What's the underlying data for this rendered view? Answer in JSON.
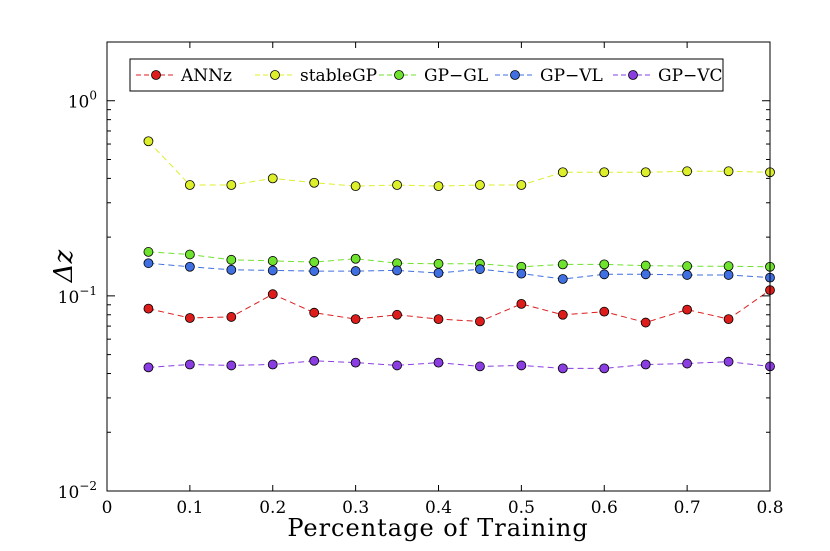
{
  "chart_data": {
    "type": "line",
    "title": "",
    "xlabel": "Percentage of Training",
    "ylabel": "Δz",
    "xlim": [
      0,
      0.8
    ],
    "ylim": [
      0.01,
      2.0
    ],
    "yscale": "log",
    "grid": false,
    "legend_position": "top",
    "x_ticks": [
      {
        "value": 0,
        "label": "0"
      },
      {
        "value": 0.1,
        "label": "0.1"
      },
      {
        "value": 0.2,
        "label": "0.2"
      },
      {
        "value": 0.3,
        "label": "0.3"
      },
      {
        "value": 0.4,
        "label": "0.4"
      },
      {
        "value": 0.5,
        "label": "0.5"
      },
      {
        "value": 0.6,
        "label": "0.6"
      },
      {
        "value": 0.7,
        "label": "0.7"
      },
      {
        "value": 0.8,
        "label": "0.8"
      }
    ],
    "y_ticks": [
      {
        "value": 1,
        "base": "10",
        "exp": "0"
      },
      {
        "value": 0.1,
        "base": "10",
        "exp": "−1"
      },
      {
        "value": 0.01,
        "base": "10",
        "exp": "−2"
      }
    ],
    "x": [
      0.05,
      0.1,
      0.15,
      0.2,
      0.25,
      0.3,
      0.35,
      0.4,
      0.45,
      0.5,
      0.55,
      0.6,
      0.65,
      0.7,
      0.75,
      0.8
    ],
    "series": [
      {
        "name": "ANNz",
        "color": "#dd1c1c",
        "values": [
          0.086,
          0.077,
          0.078,
          0.102,
          0.082,
          0.076,
          0.08,
          0.076,
          0.074,
          0.091,
          0.08,
          0.083,
          0.073,
          0.085,
          0.076,
          0.107
        ]
      },
      {
        "name": "stableGP",
        "color": "#dcef2a",
        "values": [
          0.62,
          0.37,
          0.37,
          0.4,
          0.38,
          0.365,
          0.37,
          0.365,
          0.37,
          0.37,
          0.43,
          0.43,
          0.43,
          0.435,
          0.435,
          0.43
        ]
      },
      {
        "name": "GP−GL",
        "color": "#6fe22e",
        "values": [
          0.168,
          0.163,
          0.153,
          0.151,
          0.149,
          0.155,
          0.147,
          0.146,
          0.146,
          0.141,
          0.145,
          0.145,
          0.143,
          0.142,
          0.142,
          0.141
        ]
      },
      {
        "name": "GP−VL",
        "color": "#3f6fe0",
        "values": [
          0.147,
          0.141,
          0.136,
          0.135,
          0.134,
          0.134,
          0.135,
          0.131,
          0.137,
          0.13,
          0.122,
          0.129,
          0.129,
          0.128,
          0.128,
          0.124
        ]
      },
      {
        "name": "GP−VC",
        "color": "#8a3de0",
        "values": [
          0.043,
          0.0445,
          0.044,
          0.0445,
          0.0465,
          0.0455,
          0.044,
          0.0455,
          0.0435,
          0.044,
          0.0425,
          0.0425,
          0.0445,
          0.045,
          0.046,
          0.0435
        ]
      }
    ]
  }
}
